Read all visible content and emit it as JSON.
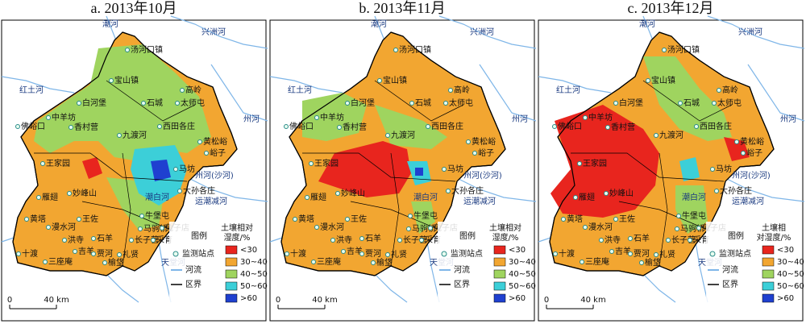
{
  "panels": [
    {
      "title": "a. 2013年10月",
      "legend_title": [
        "土壤相对",
        "湿度/%"
      ]
    },
    {
      "title": "b. 2013年11月",
      "legend_title": [
        "土壤相对",
        "湿度/%"
      ]
    },
    {
      "title": "c. 2013年12月",
      "legend_title": [
        "土壤相",
        "对湿度/%"
      ]
    }
  ],
  "legend": {
    "heading": "图例",
    "station": "监测站点",
    "river": "河流",
    "boundary": "区界",
    "classes": [
      {
        "label": "<30",
        "color": "#e8251e"
      },
      {
        "label": "30~40",
        "color": "#f2a631"
      },
      {
        "label": "40~50",
        "color": "#9fd45f"
      },
      {
        "label": "50~60",
        "color": "#3ccfd8"
      },
      {
        "label": ">60",
        "color": "#1f40d0"
      }
    ]
  },
  "scale": {
    "zero": "0",
    "distance": "40 km"
  },
  "places": [
    "汤河口镇",
    "宝山镇",
    "高岭",
    "石城",
    "太师屯",
    "白河堡",
    "西田各庄",
    "佛峪口",
    "中羊坊",
    "香村营",
    "九渡河",
    "黄松峪",
    "峪子",
    "王家园",
    "马坊",
    "雁翅",
    "妙峰山",
    "黄塔",
    "漫水河",
    "王佐",
    "牛堡屯",
    "马驹桥",
    "兔子店",
    "十渡",
    "三座庵",
    "吉羊",
    "贾河",
    "榆垡",
    "长子营",
    "石羊",
    "洪寺",
    "礼贤",
    "采育",
    "大孙各庄"
  ],
  "rivers": [
    "潮河",
    "兴洲河",
    "红土河",
    "州河",
    "潮白河",
    "运潮减河",
    "州河(沙河)",
    "天堂河"
  ]
}
